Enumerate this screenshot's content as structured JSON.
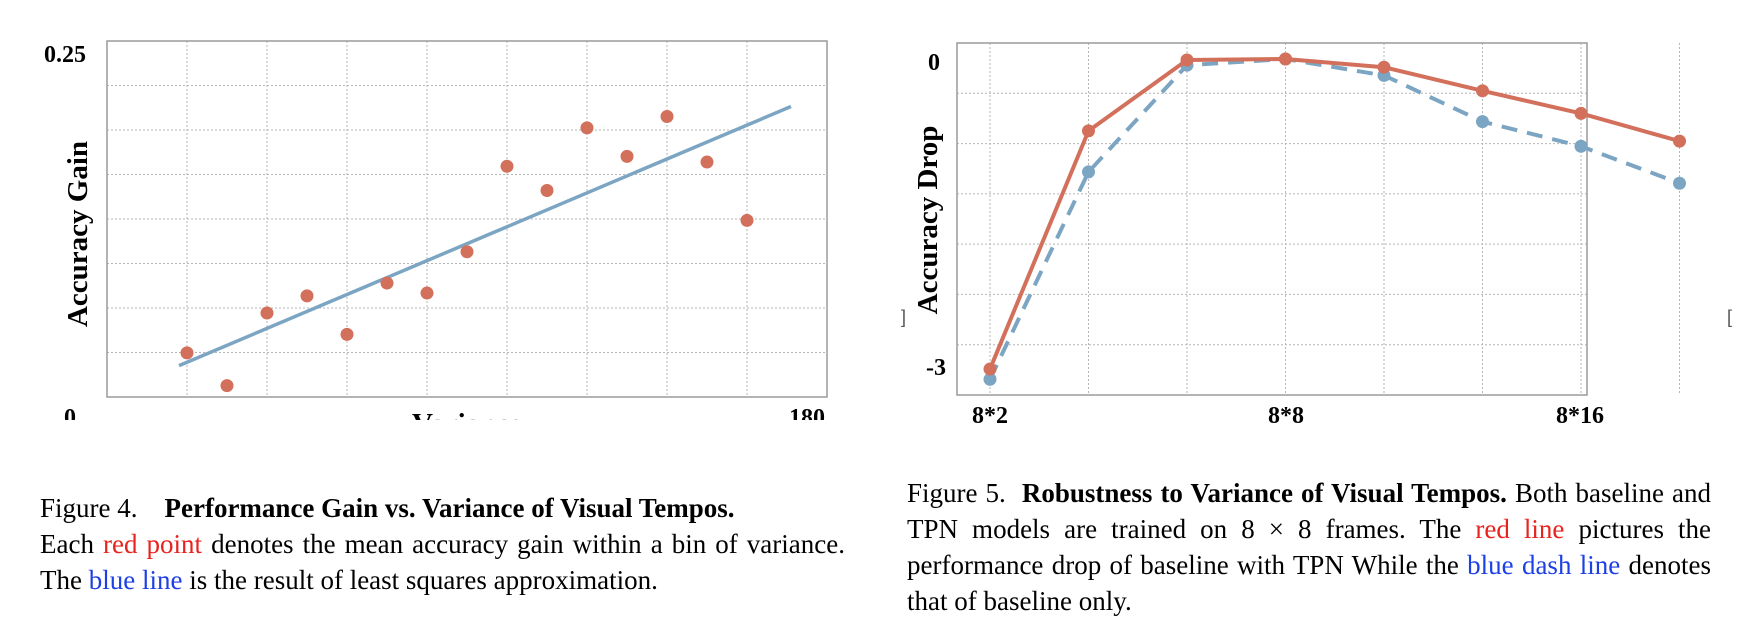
{
  "chart_data": [
    {
      "type": "scatter",
      "title": "",
      "xlabel": "Variance",
      "ylabel": "Accuracy Gain",
      "xlim": [
        0,
        180
      ],
      "ylim": [
        0,
        0.25
      ],
      "x_tick_labels": [
        "0",
        "180"
      ],
      "y_tick_labels": [
        "0",
        "0.25"
      ],
      "grid": true,
      "series": [
        {
          "color": "#d3705c",
          "points": [
            {
              "x": 20,
              "y": 0.031
            },
            {
              "x": 30,
              "y": 0.008
            },
            {
              "x": 40,
              "y": 0.059
            },
            {
              "x": 50,
              "y": 0.071
            },
            {
              "x": 60,
              "y": 0.044
            },
            {
              "x": 70,
              "y": 0.08
            },
            {
              "x": 80,
              "y": 0.073
            },
            {
              "x": 90,
              "y": 0.102
            },
            {
              "x": 100,
              "y": 0.162
            },
            {
              "x": 110,
              "y": 0.145
            },
            {
              "x": 120,
              "y": 0.189
            },
            {
              "x": 130,
              "y": 0.169
            },
            {
              "x": 140,
              "y": 0.197
            },
            {
              "x": 150,
              "y": 0.165
            },
            {
              "x": 160,
              "y": 0.124
            }
          ]
        },
        {
          "color": "#7ba5c2",
          "line": [
            {
              "x": 18,
              "y": 0.022
            },
            {
              "x": 171,
              "y": 0.204
            }
          ]
        }
      ]
    },
    {
      "type": "line",
      "title": "",
      "xlabel": "",
      "ylabel": "Accuracy Drop",
      "ylim": [
        -3,
        0
      ],
      "x": [
        0,
        1,
        2,
        3,
        4,
        5,
        6,
        7
      ],
      "x_tick_labels": [
        "8*2",
        "8*8",
        "8*16"
      ],
      "y_tick_labels": [
        "0",
        "-3"
      ],
      "grid": true,
      "series": [
        {
          "color": "#d3705c",
          "style": "solid",
          "values": [
            -3.02,
            -0.7,
            -0.01,
            0.0,
            -0.08,
            -0.31,
            -0.53,
            -0.8
          ]
        },
        {
          "color": "#7ba5c2",
          "style": "dashed",
          "values": [
            -3.12,
            -1.1,
            -0.06,
            0.0,
            -0.16,
            -0.61,
            -0.85,
            -1.21
          ]
        }
      ]
    }
  ],
  "captions": {
    "fig4": {
      "label": "Figure 4.",
      "title": "Performance Gain vs. Variance of Visual Tempos.",
      "t1": "Each ",
      "red": "red point",
      "t2": " denotes the mean accuracy gain within a bin of variance. The ",
      "blue": "blue line",
      "t3": " is the result of least squares approximation."
    },
    "fig5": {
      "label": "Figure 5.",
      "title": "Robustness to Variance of Visual Tempos.",
      "t1": " Both baseline and TPN models are trained on 8 × 8 frames. The ",
      "red": "red line",
      "t2": " pictures the performance drop of baseline with TPN While the ",
      "blue": "blue dash line",
      "t3": " denotes that of baseline only."
    }
  }
}
